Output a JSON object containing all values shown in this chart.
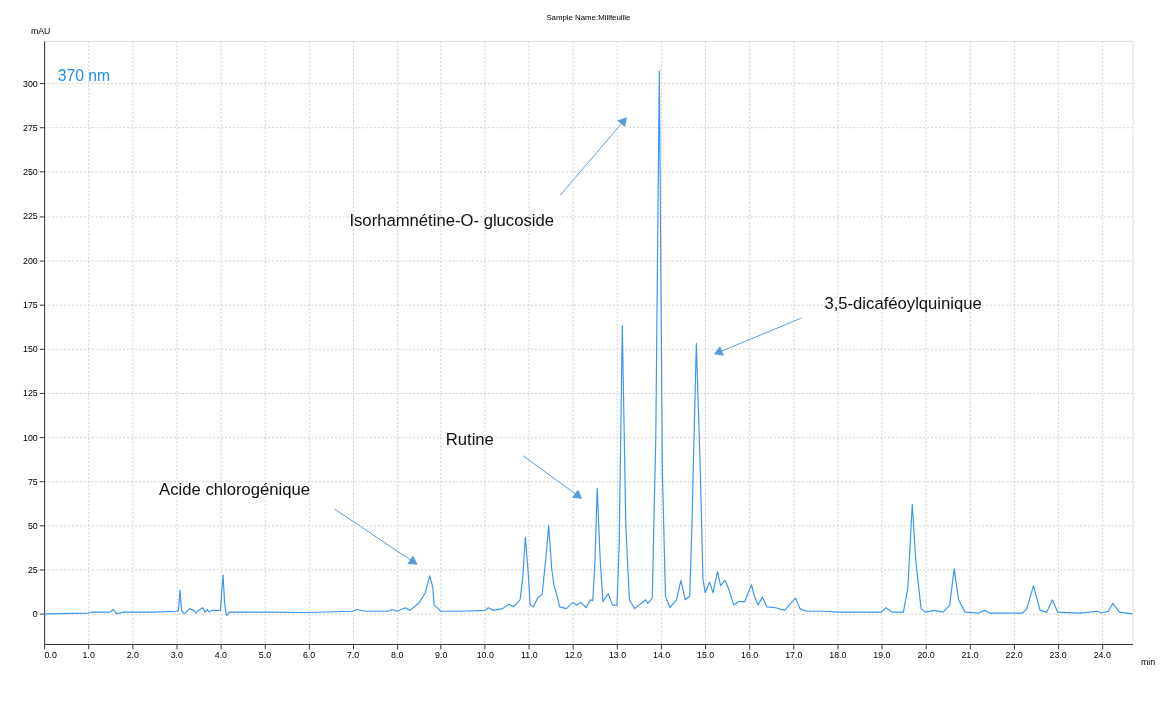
{
  "chart_data": {
    "type": "line",
    "title": "Sample Name:Millfeuille",
    "xlabel": "min",
    "ylabel": "mAU",
    "annotations": [
      "370 nm",
      "Acide chlorogénique",
      "Rutine",
      "Isorhamnétine-O- glucoside",
      "3,5-dicaféoylquinique"
    ],
    "xlim": [
      0,
      24.7
    ],
    "ylim": [
      -17,
      324
    ],
    "xticks": [
      {
        "value": 0,
        "label": "0.0"
      },
      {
        "value": 1,
        "label": "1.0"
      },
      {
        "value": 2,
        "label": "2.0"
      },
      {
        "value": 3,
        "label": "3.0"
      },
      {
        "value": 4,
        "label": "4.0"
      },
      {
        "value": 5,
        "label": "5.0"
      },
      {
        "value": 6,
        "label": "6.0"
      },
      {
        "value": 7,
        "label": "7.0"
      },
      {
        "value": 8,
        "label": "8.0"
      },
      {
        "value": 9,
        "label": "9.0"
      },
      {
        "value": 10,
        "label": "10.0"
      },
      {
        "value": 11,
        "label": "11.0"
      },
      {
        "value": 12,
        "label": "12.0"
      },
      {
        "value": 13,
        "label": "13.0"
      },
      {
        "value": 14,
        "label": "14.0"
      },
      {
        "value": 15,
        "label": "15.0"
      },
      {
        "value": 16,
        "label": "16.0"
      },
      {
        "value": 17,
        "label": "17.0"
      },
      {
        "value": 18,
        "label": "18.0"
      },
      {
        "value": 19,
        "label": "19.0"
      },
      {
        "value": 20,
        "label": "20.0"
      },
      {
        "value": 21,
        "label": "21.0"
      },
      {
        "value": 22,
        "label": "22.0"
      },
      {
        "value": 23,
        "label": "23.0"
      },
      {
        "value": 24,
        "label": "24.0"
      }
    ],
    "yticks": [
      0,
      25,
      50,
      75,
      100,
      125,
      150,
      175,
      200,
      225,
      250,
      275,
      300
    ],
    "grid": true,
    "marker": "none",
    "line_style": "solid",
    "series": [
      {
        "color": "#3c96f0",
        "x": [
          0,
          1.0,
          1.1,
          1.5,
          1.57,
          1.65,
          1.8,
          2.5,
          3.0,
          3.05,
          3.08,
          3.12,
          3.18,
          3.3,
          3.4,
          3.45,
          3.5,
          3.6,
          3.65,
          3.7,
          3.75,
          3.8,
          4.0,
          4.06,
          4.1,
          4.14,
          4.2,
          5,
          6,
          7.0,
          7.1,
          7.3,
          7.8,
          7.9,
          8.0,
          8.2,
          8.3,
          8.5,
          8.65,
          8.75,
          8.82,
          8.85,
          8.95,
          9.0,
          9.5,
          10.0,
          10.08,
          10.2,
          10.4,
          10.55,
          10.65,
          10.8,
          10.86,
          10.92,
          10.98,
          11.03,
          11.1,
          11.2,
          11.3,
          11.38,
          11.45,
          11.52,
          11.57,
          11.62,
          11.7,
          11.85,
          12.0,
          12.08,
          12.18,
          12.3,
          12.4,
          12.45,
          12.5,
          12.55,
          12.62,
          12.68,
          12.8,
          12.9,
          13.0,
          13.05,
          13.12,
          13.2,
          13.28,
          13.4,
          13.6,
          13.65,
          13.7,
          13.8,
          13.88,
          13.96,
          14.03,
          14.1,
          14.2,
          14.35,
          14.45,
          14.55,
          14.65,
          14.7,
          14.8,
          14.88,
          14.95,
          15.0,
          15.1,
          15.18,
          15.28,
          15.35,
          15.45,
          15.52,
          15.65,
          15.75,
          15.9,
          16.05,
          16.12,
          16.2,
          16.3,
          16.4,
          16.6,
          16.8,
          17.05,
          17.15,
          17.3,
          17.7,
          18.0,
          19.0,
          19.1,
          19.25,
          19.5,
          19.6,
          19.7,
          19.78,
          19.9,
          20.0,
          20.2,
          20.4,
          20.55,
          20.65,
          20.75,
          20.9,
          21.2,
          21.35,
          21.45,
          22.2,
          22.3,
          22.45,
          22.6,
          22.75,
          22.88,
          23.0,
          23.5,
          23.9,
          24.0,
          24.15,
          24.25,
          24.4,
          24.7
        ],
        "values": [
          0,
          0.5,
          1,
          1,
          2.5,
          0,
          1,
          1,
          1.5,
          2,
          13.5,
          2,
          0,
          3,
          2,
          0.5,
          2,
          3.5,
          1,
          2.5,
          1,
          2,
          2,
          22,
          5,
          -1,
          1,
          1,
          0.8,
          1.5,
          2.5,
          1.5,
          1.5,
          2.5,
          1.5,
          3.5,
          2,
          6,
          12,
          21.5,
          15,
          5,
          3,
          1.5,
          1.5,
          2,
          3.5,
          2,
          3,
          5.5,
          4,
          8,
          20,
          43.5,
          25,
          5,
          4,
          9,
          11,
          30,
          50,
          25,
          16,
          12,
          4,
          3,
          6.5,
          5,
          6.5,
          3.5,
          8,
          7.5,
          30,
          71,
          30,
          7,
          11.5,
          5,
          5,
          40,
          163,
          50,
          8,
          3,
          7,
          8,
          6,
          9,
          100,
          307,
          80,
          10,
          3.5,
          8,
          19,
          8,
          10,
          50,
          153,
          90,
          20,
          12,
          18,
          12,
          24,
          16,
          19,
          15,
          5,
          7,
          7,
          16.5,
          10,
          5,
          9.5,
          4,
          3.5,
          2,
          9,
          3,
          1.5,
          1.5,
          1,
          1,
          3.5,
          1,
          1,
          15,
          62,
          30,
          3,
          1,
          2,
          1,
          5,
          25.5,
          8,
          1,
          0.5,
          2,
          0.5,
          0.5,
          3,
          16,
          2,
          1,
          8,
          1,
          0.5,
          1.5,
          0.5,
          1.5,
          6,
          1,
          0
        ]
      }
    ]
  }
}
